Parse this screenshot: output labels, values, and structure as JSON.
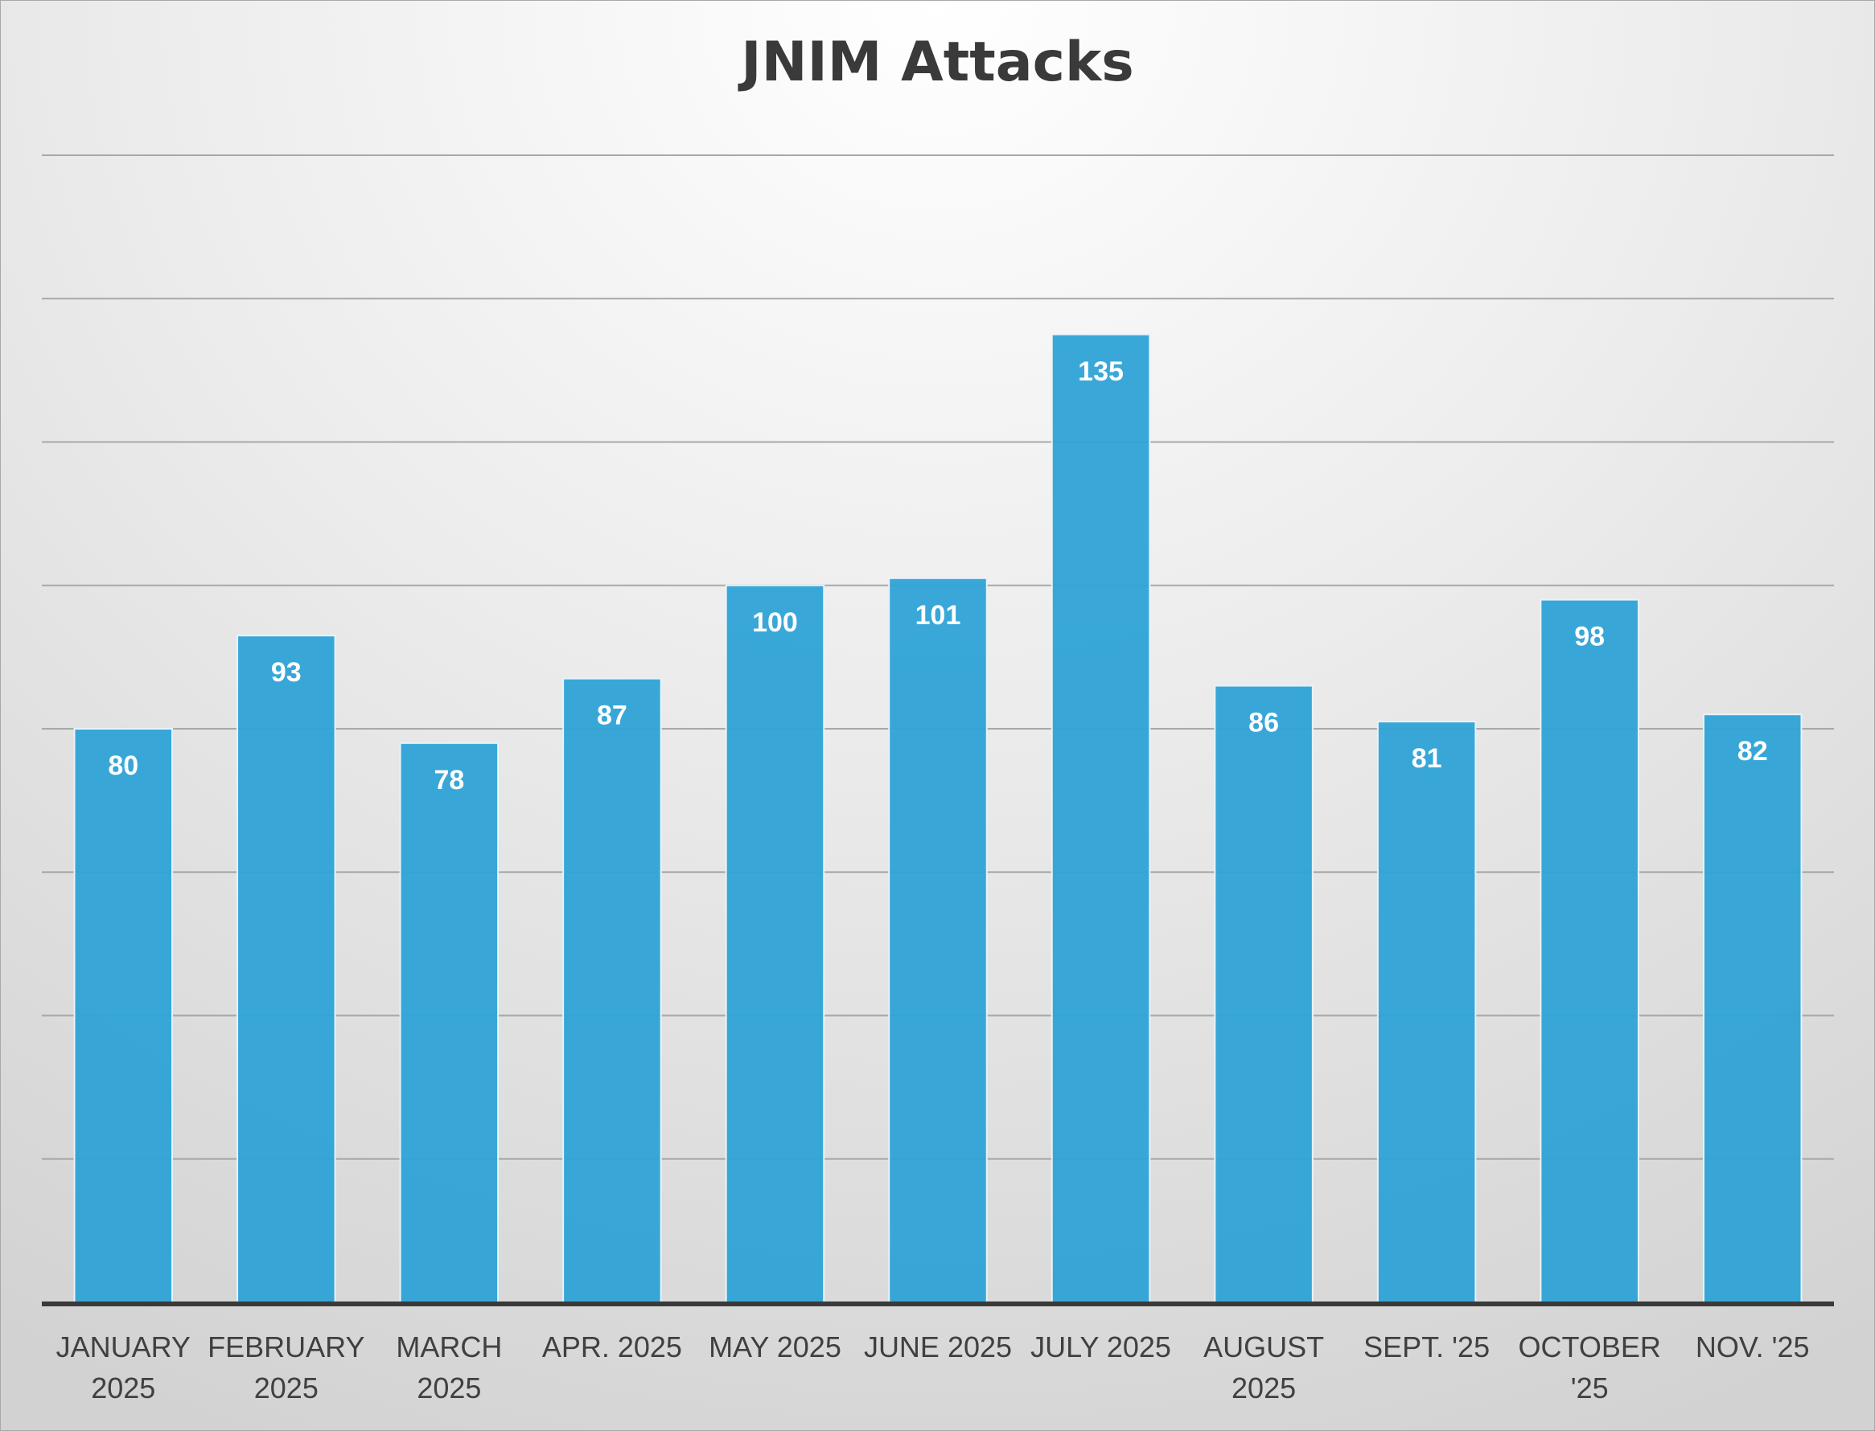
{
  "chart_data": {
    "type": "bar",
    "title": "JNIM Attacks",
    "categories": [
      [
        "JANUARY",
        "2025"
      ],
      [
        "FEBRUARY",
        "2025"
      ],
      [
        "MARCH",
        "2025"
      ],
      [
        "APR. 2025"
      ],
      [
        "MAY 2025"
      ],
      [
        "JUNE 2025"
      ],
      [
        "JULY 2025"
      ],
      [
        "AUGUST",
        "2025"
      ],
      [
        "SEPT. '25"
      ],
      [
        "OCTOBER",
        "'25"
      ],
      [
        "NOV. '25"
      ]
    ],
    "values": [
      80,
      93,
      78,
      87,
      100,
      101,
      135,
      86,
      81,
      98,
      82
    ],
    "ylim": [
      0,
      160
    ],
    "gridlines": true,
    "y_tick_labels_shown": false,
    "bar_color": "#2ea3d6",
    "data_labels": "inside-end"
  }
}
